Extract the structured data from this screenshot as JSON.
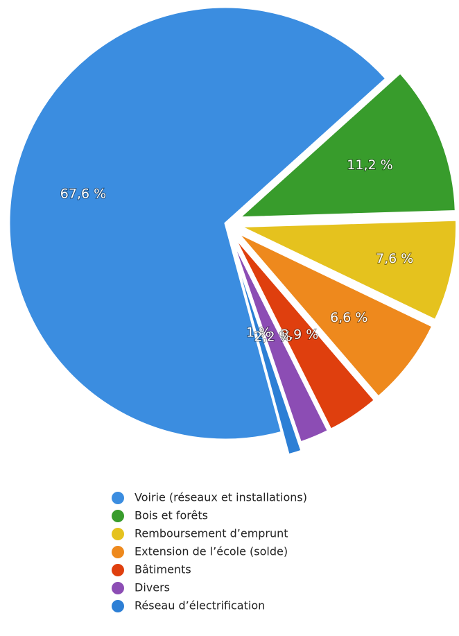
{
  "chart_data": {
    "type": "pie",
    "categories": [
      "Voirie (réseaux et installations)",
      "Bois et forêts",
      "Remboursement d’emprunt",
      "Extension de l’école (solde)",
      "Bâtiments",
      "Divers",
      "Réseau d’électrification"
    ],
    "values": [
      67.6,
      11.2,
      7.6,
      6.6,
      3.9,
      2.2,
      1
    ],
    "value_labels": [
      "67,6 %",
      "11,2 %",
      "7,6 %",
      "6,6 %",
      "3,9 %",
      "2,2 %",
      "1 %"
    ],
    "colors": [
      "#3b8de0",
      "#389c2c",
      "#e5c21e",
      "#ee891d",
      "#df3f0e",
      "#8c4db4",
      "#2d7fd5"
    ],
    "legend": "bottom"
  }
}
